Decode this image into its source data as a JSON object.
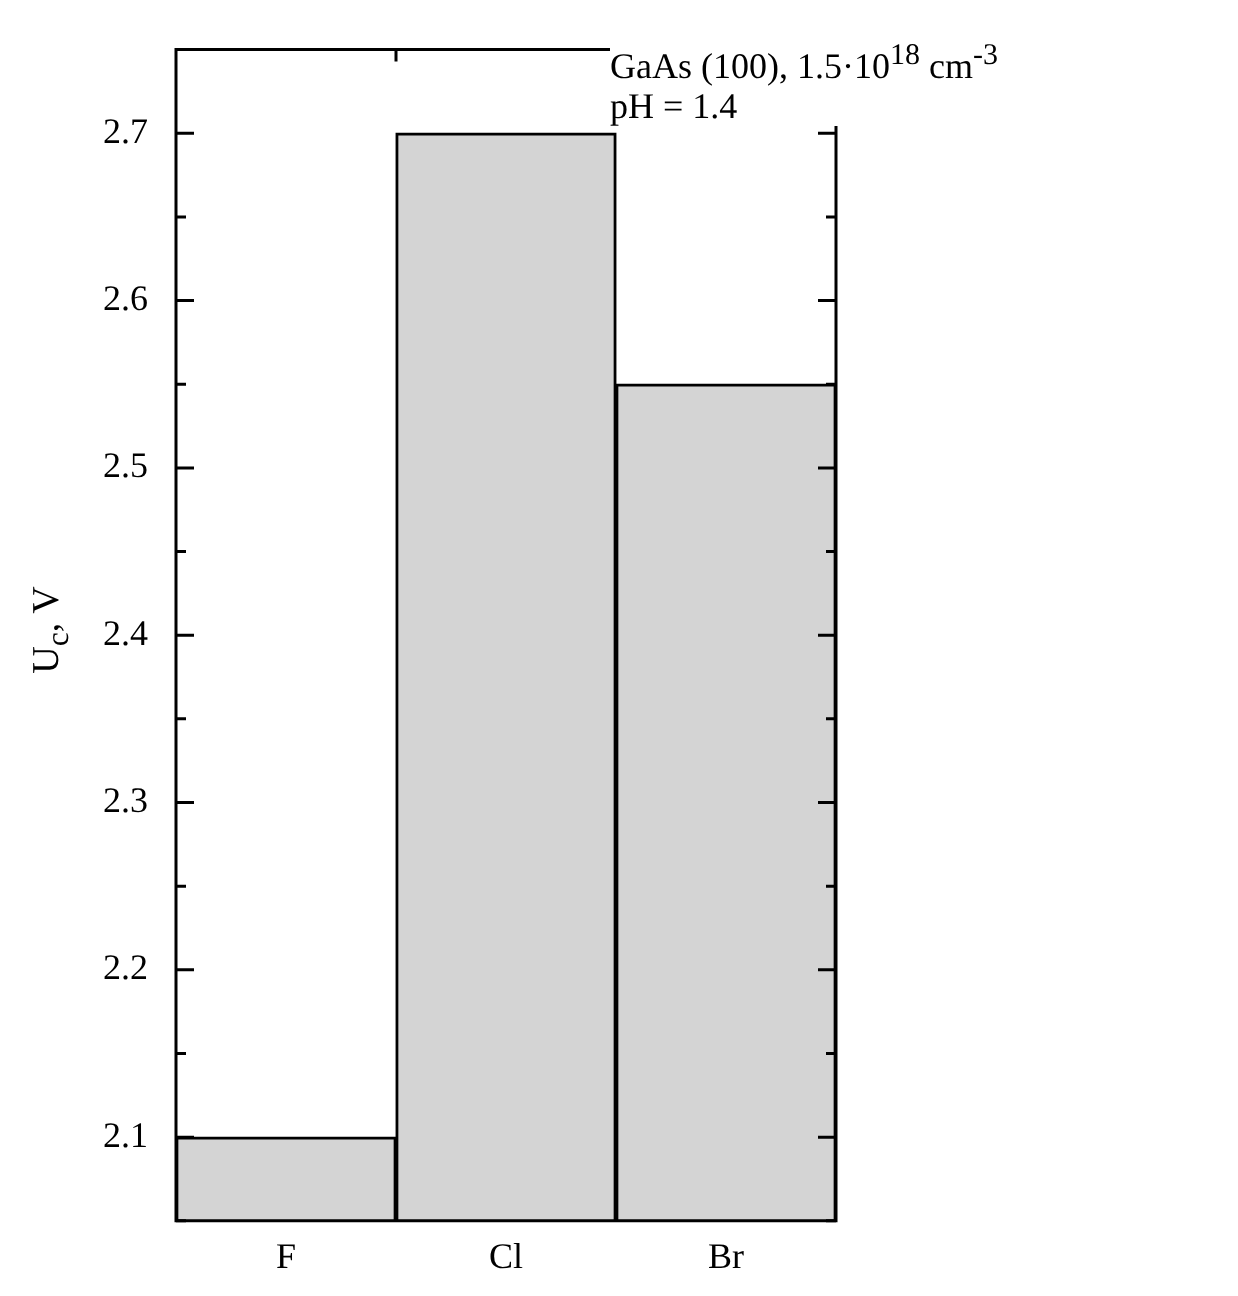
{
  "chart_data": {
    "type": "bar",
    "ylabel": "U$_{c}$, V",
    "categories": [
      "F",
      "Cl",
      "Br"
    ],
    "values": [
      2.1,
      2.7,
      2.55
    ],
    "color": "#d4d4d4",
    "ylim": [
      2.05,
      2.75
    ],
    "yticks": [
      {
        "value": 2.05,
        "label": null
      },
      2.1,
      {
        "value": 2.15,
        "label": null
      },
      2.2,
      {
        "value": 2.25,
        "label": null
      },
      2.3,
      {
        "value": 2.35,
        "label": null
      },
      2.4,
      {
        "value": 2.45,
        "label": null
      },
      2.5,
      {
        "value": 2.55,
        "label": null
      },
      2.6,
      {
        "value": 2.65,
        "label": null
      },
      2.7,
      {
        "value": 2.75,
        "label": null
      }
    ],
    "annotations": [
      "GaAs (100), 1.5·10$^{18}$ cm$^{-3}$",
      "pH = 1.4"
    ],
    "grid": false,
    "legend": false
  }
}
